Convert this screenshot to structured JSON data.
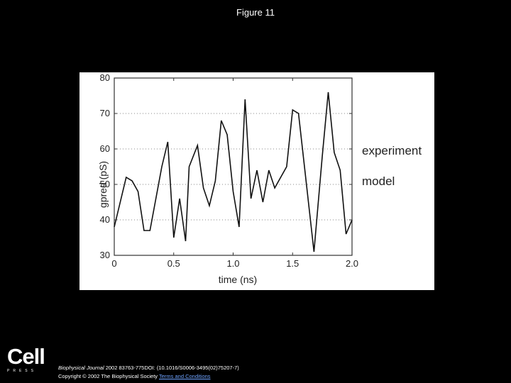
{
  "page": {
    "title": "Figure 11"
  },
  "chart_data": {
    "type": "line",
    "title": "",
    "xlabel": "time (ns)",
    "ylabel": "gpred (pS)",
    "xlim": [
      0,
      2.0
    ],
    "ylim": [
      30,
      80
    ],
    "x_ticks": [
      "0",
      "0.5",
      "1.0",
      "1.5",
      "2.0"
    ],
    "y_ticks": [
      "30",
      "40",
      "50",
      "60",
      "70",
      "80"
    ],
    "grid": "dotted horizontal",
    "legend_placement": "right, outside plot",
    "legend": [
      "experiment",
      "model"
    ],
    "series": [
      {
        "name": "model",
        "x": [
          0.0,
          0.1,
          0.15,
          0.2,
          0.25,
          0.3,
          0.4,
          0.45,
          0.5,
          0.55,
          0.6,
          0.63,
          0.7,
          0.75,
          0.8,
          0.85,
          0.9,
          0.95,
          1.0,
          1.05,
          1.1,
          1.15,
          1.2,
          1.25,
          1.3,
          1.35,
          1.4,
          1.45,
          1.5,
          1.55,
          1.6,
          1.68,
          1.75,
          1.8,
          1.85,
          1.9,
          1.95,
          2.0
        ],
        "y": [
          38,
          52,
          51,
          48,
          37,
          37,
          55,
          62,
          35,
          46,
          34,
          55,
          61,
          49,
          44,
          51,
          68,
          64,
          48,
          38,
          74,
          46,
          54,
          45,
          54,
          49,
          52,
          55,
          71,
          70,
          55,
          31,
          58,
          76,
          59,
          54,
          36,
          40
        ]
      }
    ]
  },
  "citation": {
    "journal": "Biophysical Journal",
    "details": " 2002 83763-775DOI: (10.1016/S0006-3495(02)75207-7)",
    "copyright": "Copyright © 2002 The Biophysical Society ",
    "link_text": "Terms and Conditions"
  },
  "logo": {
    "word": "Cell",
    "press": "PRESS"
  }
}
